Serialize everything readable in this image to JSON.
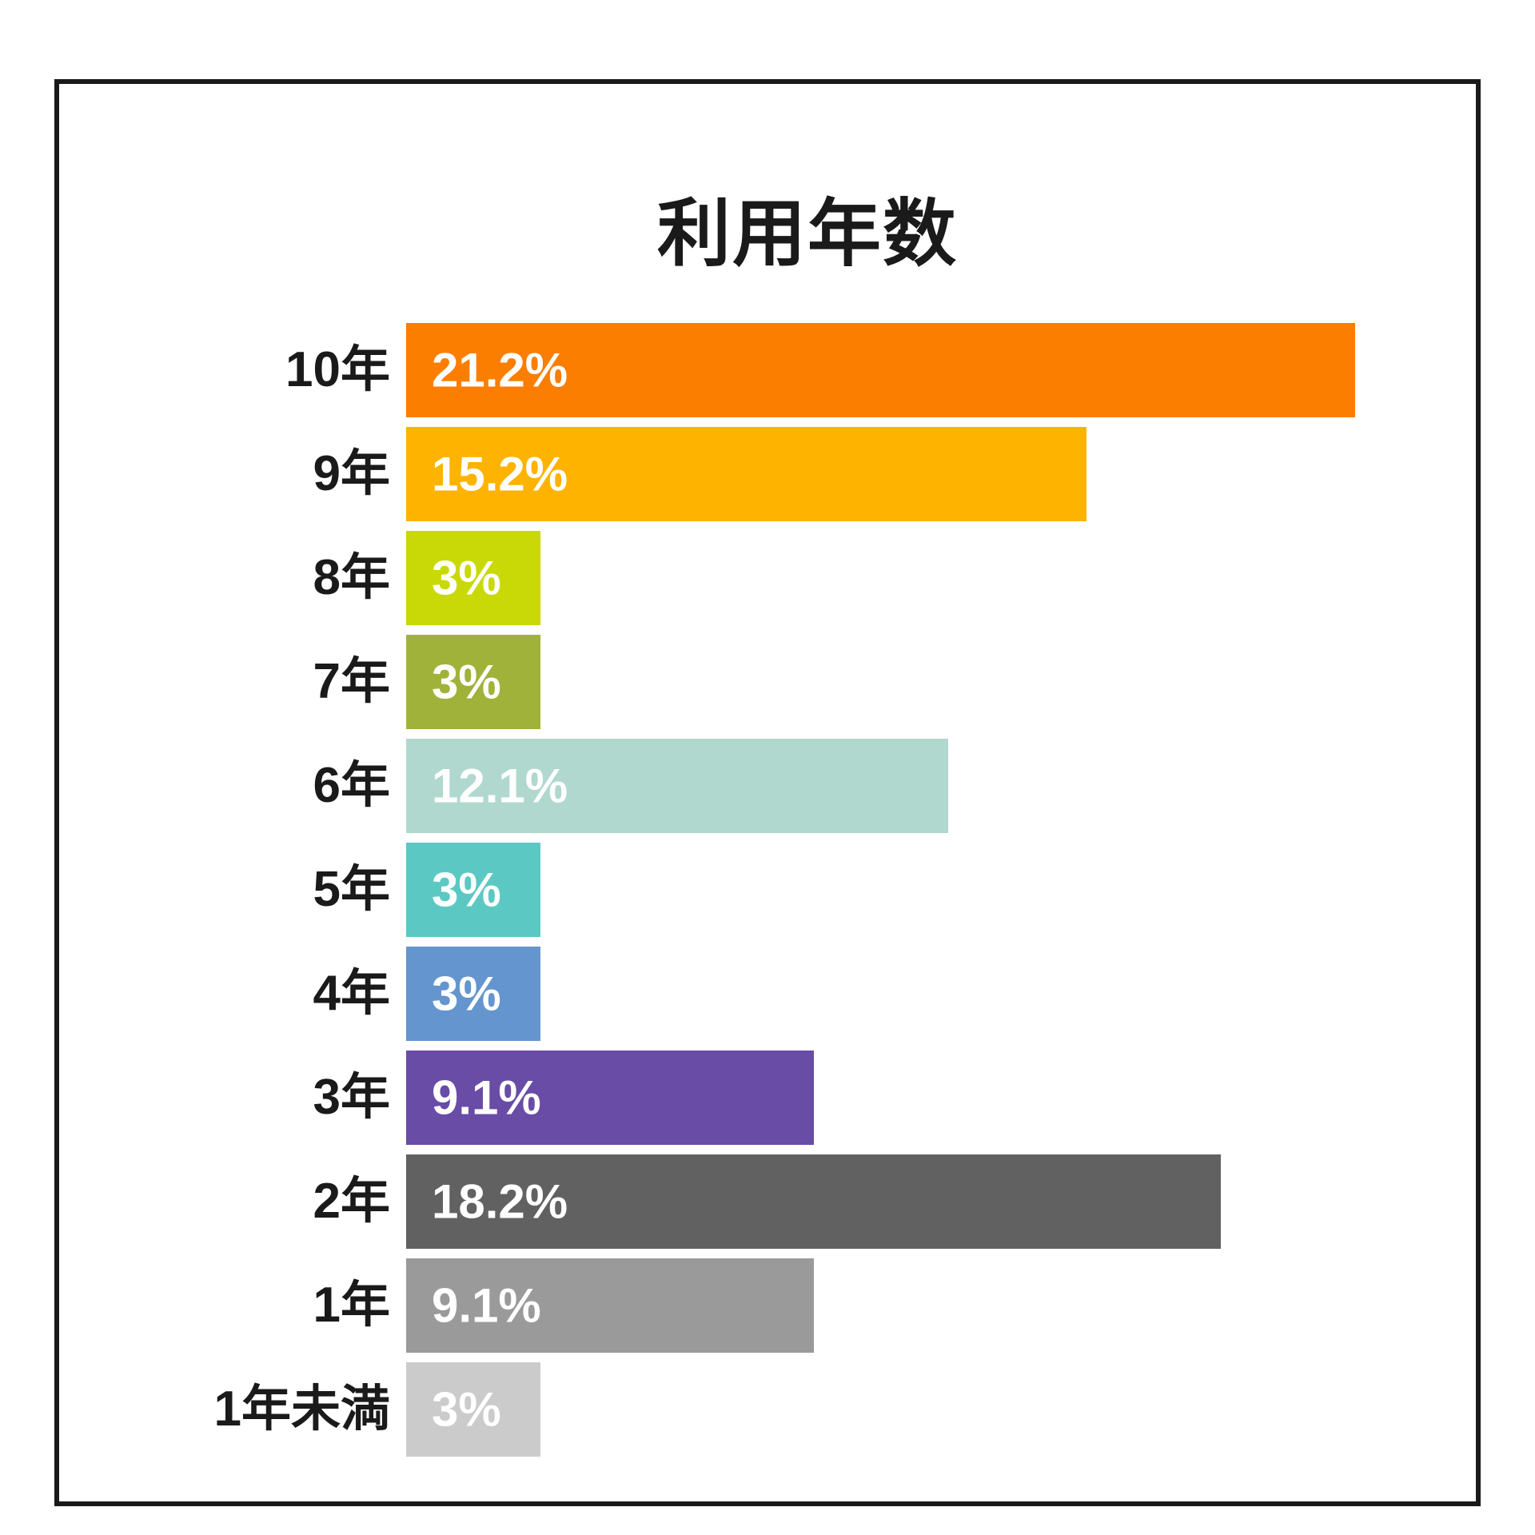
{
  "page": {
    "background_color": "#ffffff",
    "frame_border_color": "#1a1a1a",
    "title_text_color": "#1a1a1a",
    "category_label_color": "#1a1a1a"
  },
  "chart_data": {
    "type": "bar",
    "orientation": "horizontal",
    "title": "利用年数",
    "categories": [
      "10年",
      "9年",
      "8年",
      "7年",
      "6年",
      "5年",
      "4年",
      "3年",
      "2年",
      "1年",
      "1年未満"
    ],
    "values": [
      21.2,
      15.2,
      3,
      3,
      12.1,
      3,
      3,
      9.1,
      18.2,
      9.1,
      3
    ],
    "value_labels": [
      "21.2%",
      "15.2%",
      "3%",
      "3%",
      "12.1%",
      "3%",
      "3%",
      "9.1%",
      "18.2%",
      "9.1%",
      "3%"
    ],
    "bar_colors": [
      "#fb7e00",
      "#feb300",
      "#c9d908",
      "#a1b23a",
      "#b0d8ce",
      "#5cc8c3",
      "#6495ce",
      "#684ca5",
      "#616161",
      "#9a9a9a",
      "#cbcbcb"
    ],
    "value_label_color": "#ffffff",
    "value_label_position": "inside-left",
    "xlabel": "",
    "ylabel": "",
    "xlim": [
      0,
      24
    ],
    "axis_visible": false,
    "grid": false,
    "legend": false
  }
}
